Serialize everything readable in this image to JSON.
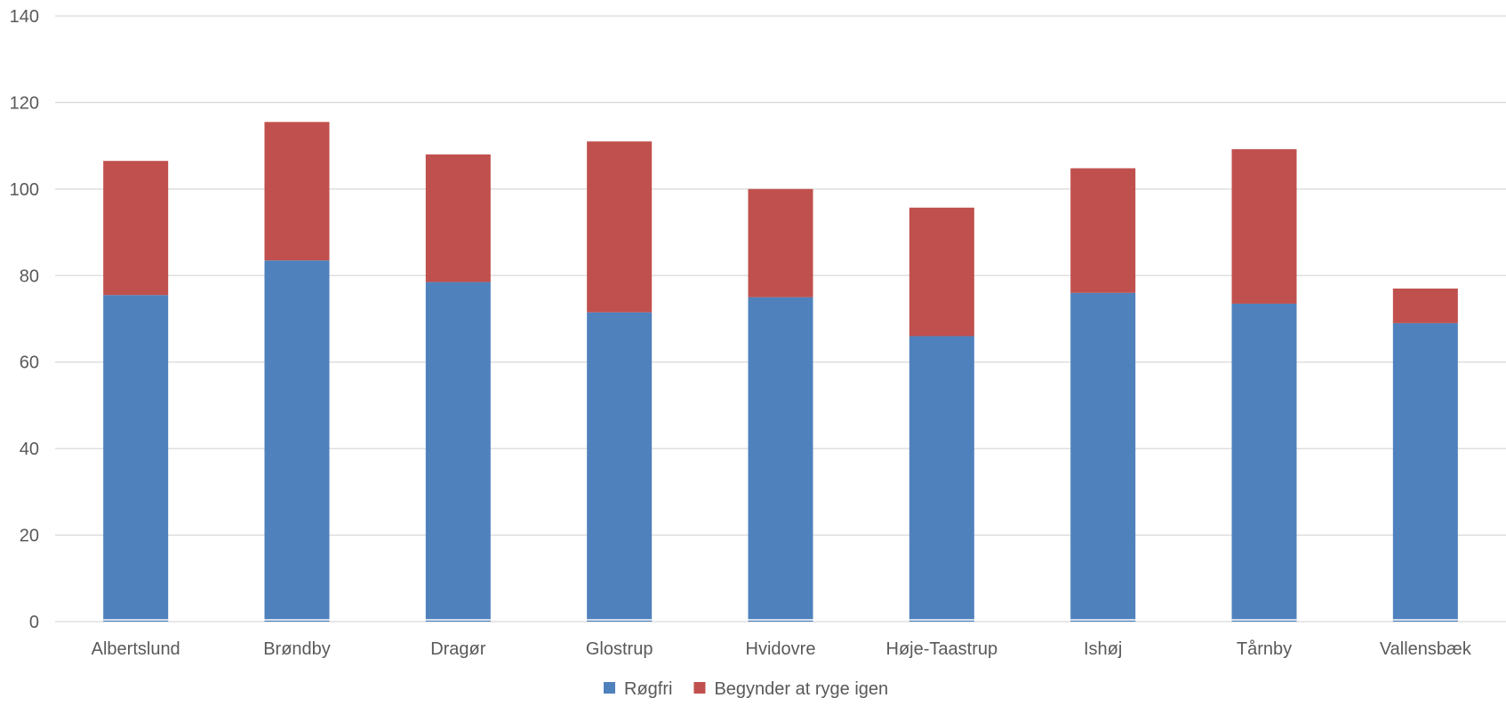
{
  "chart_data": {
    "type": "bar",
    "stacked": true,
    "title": "",
    "xlabel": "",
    "ylabel": "",
    "ylim": [
      0,
      140
    ],
    "yticks": [
      0,
      20,
      40,
      60,
      80,
      100,
      120,
      140
    ],
    "grid": true,
    "legend_position": "bottom",
    "categories": [
      "Albertslund",
      "Brøndby",
      "Dragør",
      "Glostrup",
      "Hvidovre",
      "Høje-Taastrup",
      "Ishøj",
      "Tårnby",
      "Vallensbæk"
    ],
    "series": [
      {
        "name": "Røgfri",
        "color": "#4f81bd",
        "values": [
          75.5,
          83.5,
          78.5,
          71.5,
          75,
          66,
          76,
          73.5,
          69
        ]
      },
      {
        "name": "Begynder at ryge igen",
        "color": "#c0504d",
        "values": [
          31,
          32,
          29.5,
          39.5,
          25,
          29.7,
          28.8,
          35.7,
          8
        ]
      }
    ]
  }
}
